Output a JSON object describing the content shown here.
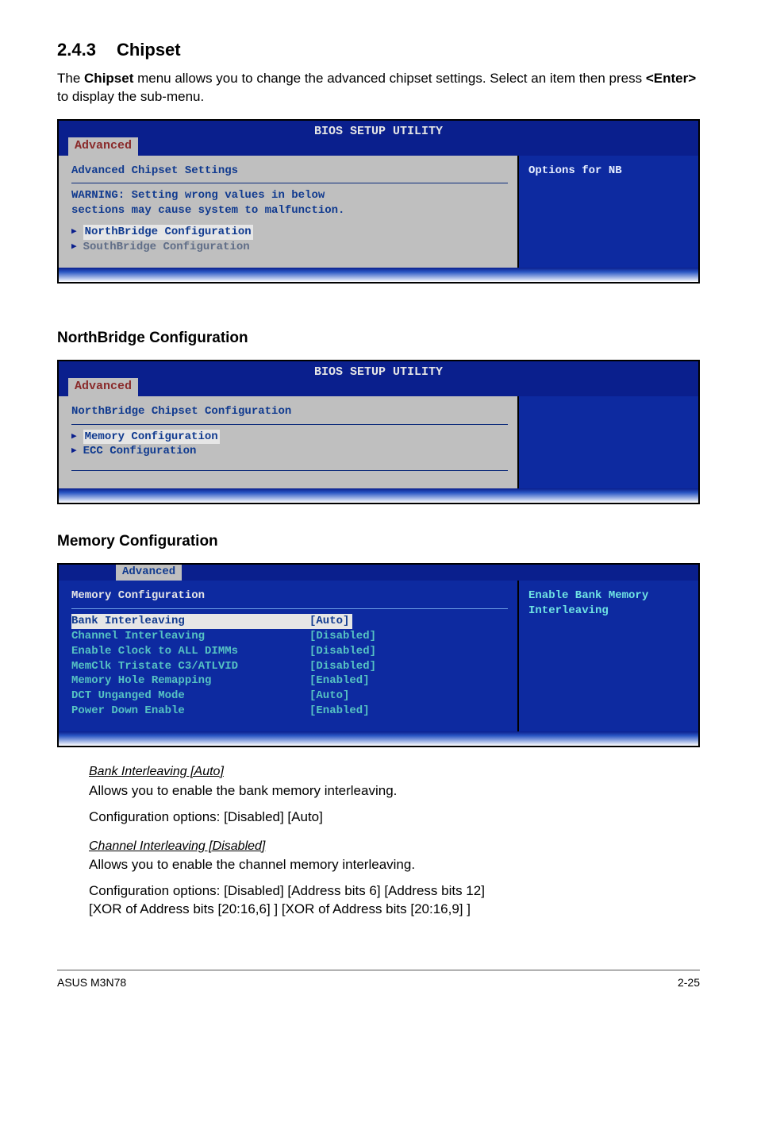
{
  "section": {
    "number": "2.4.3",
    "title": "Chipset"
  },
  "intro_a": "The ",
  "intro_bold1": "Chipset",
  "intro_b": " menu allows you to change the advanced chipset settings. Select an item then press ",
  "intro_bold2": "<Enter>",
  "intro_c": " to display the sub-menu.",
  "bios1": {
    "title": "BIOS SETUP UTILITY",
    "tab": "Advanced",
    "heading": "Advanced Chipset Settings",
    "warn1": "WARNING: Setting wrong values in below",
    "warn2": "sections may cause system to malfunction.",
    "row1": "NorthBridge Configuration",
    "row2": "SouthBridge Configuration",
    "right": "Options for NB",
    "colors": {
      "panel_bg": "#bfbfbf",
      "panel_text": "#103a8f",
      "right_bg": "#0d2aa0",
      "hi_bg": "#e6e6e6"
    }
  },
  "sub1": "NorthBridge Configuration",
  "bios2": {
    "title": "BIOS SETUP UTILITY",
    "tab": "Advanced",
    "heading": "NorthBridge Chipset Configuration",
    "row1": "Memory Configuration",
    "row2": "ECC Configuration"
  },
  "sub2": "Memory Configuration",
  "bios3": {
    "tab": "Advanced",
    "heading": "Memory Configuration",
    "right1": "Enable Bank Memory",
    "right2": "Interleaving",
    "rows": [
      {
        "label": "Bank Interleaving",
        "value": "[Auto]",
        "hi": true
      },
      {
        "label": "Channel Interleaving",
        "value": "[Disabled]",
        "hi": false
      },
      {
        "label": "Enable Clock to ALL DIMMs",
        "value": "[Disabled]",
        "hi": false
      },
      {
        "label": "MemClk Tristate C3/ATLVID",
        "value": "[Disabled]",
        "hi": false
      },
      {
        "label": "Memory Hole Remapping",
        "value": "[Enabled]",
        "hi": false
      },
      {
        "label": "DCT Unganged Mode",
        "value": "[Auto]",
        "hi": false
      },
      {
        "label": "Power Down Enable",
        "value": "[Enabled]",
        "hi": false
      }
    ]
  },
  "opt1": {
    "title": "Bank Interleaving [Auto]",
    "l1": "Allows you to enable the bank memory interleaving.",
    "l2": "Configuration options: [Disabled] [Auto]"
  },
  "opt2": {
    "title": "Channel Interleaving [Disabled]",
    "l1": "Allows you to enable the channel memory interleaving.",
    "l2": "Configuration options: [Disabled] [Address bits 6] [Address bits 12]",
    "l3": "[XOR of Address bits [20:16,6] ] [XOR of Address bits [20:16,9] ]"
  },
  "footer": {
    "left": "ASUS M3N78",
    "right": "2-25"
  }
}
